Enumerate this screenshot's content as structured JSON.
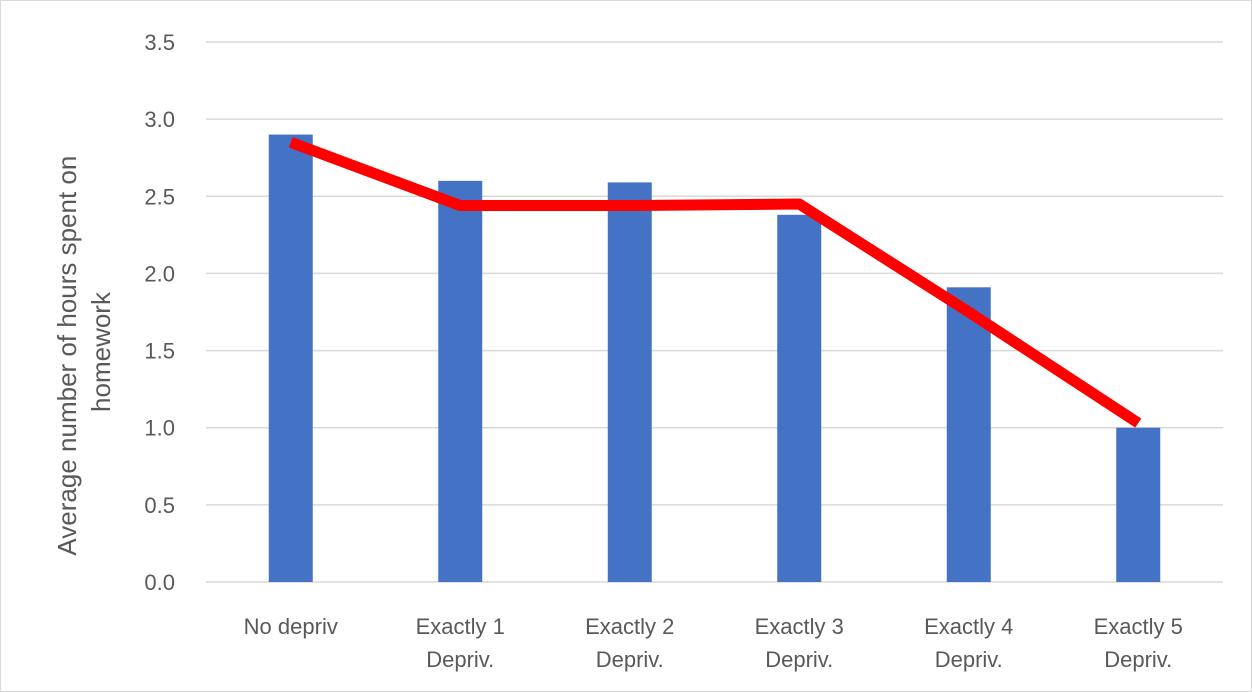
{
  "chart_data": {
    "type": "bar",
    "categories": [
      [
        "No depriv"
      ],
      [
        "Exactly 1",
        "Depriv."
      ],
      [
        "Exactly 2",
        "Depriv."
      ],
      [
        "Exactly 3",
        "Depriv."
      ],
      [
        "Exactly 4",
        "Depriv."
      ],
      [
        "Exactly 5",
        "Depriv."
      ]
    ],
    "series": [
      {
        "type": "bar",
        "values": [
          2.9,
          2.6,
          2.59,
          2.38,
          1.91,
          1.0
        ],
        "color": "#4472c4"
      },
      {
        "type": "line",
        "values": [
          2.85,
          2.44,
          2.44,
          2.45,
          1.75,
          1.03
        ],
        "color": "#ff0000"
      }
    ],
    "ylabel": [
      "Average number of hours spent on",
      "homework"
    ],
    "xlabel": "",
    "title": "",
    "ylim": [
      0,
      3.5
    ],
    "yticks": [
      "0.0",
      "0.5",
      "1.0",
      "1.5",
      "2.0",
      "2.5",
      "3.0",
      "3.5"
    ],
    "grid": true,
    "legend": "none",
    "gridline_color": "#d9d9d9"
  }
}
